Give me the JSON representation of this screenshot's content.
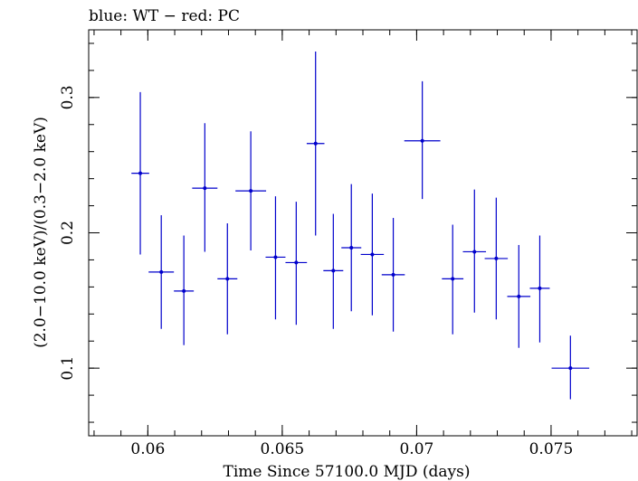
{
  "chart_data": {
    "type": "scatter",
    "title": "blue: WT − red: PC",
    "xlabel": "Time Since 57100.0 MJD (days)",
    "ylabel": "(2.0−10.0 keV)/(0.3−2.0 keV)",
    "xlim": [
      0.0578,
      0.0782
    ],
    "ylim": [
      0.05,
      0.35
    ],
    "x_ticks": [
      {
        "value": 0.06,
        "label": "0.06"
      },
      {
        "value": 0.065,
        "label": "0.065"
      },
      {
        "value": 0.07,
        "label": "0.07"
      },
      {
        "value": 0.075,
        "label": "0.075"
      }
    ],
    "y_ticks": [
      {
        "value": 0.1,
        "label": "0.1"
      },
      {
        "value": 0.2,
        "label": "0.2"
      },
      {
        "value": 0.3,
        "label": "0.3"
      }
    ],
    "x_minor_step": 0.001,
    "y_minor_step": 0.02,
    "grid": false,
    "series": [
      {
        "color": "#0000cc",
        "points": [
          {
            "x": 0.05972,
            "xerr": 0.00033,
            "y": 0.244,
            "ylo": 0.184,
            "yhi": 0.304
          },
          {
            "x": 0.0605,
            "xerr": 0.00047,
            "y": 0.171,
            "ylo": 0.129,
            "yhi": 0.213
          },
          {
            "x": 0.06134,
            "xerr": 0.00037,
            "y": 0.157,
            "ylo": 0.117,
            "yhi": 0.198
          },
          {
            "x": 0.06212,
            "xerr": 0.00047,
            "y": 0.233,
            "ylo": 0.186,
            "yhi": 0.281
          },
          {
            "x": 0.06296,
            "xerr": 0.00037,
            "y": 0.166,
            "ylo": 0.125,
            "yhi": 0.207
          },
          {
            "x": 0.06383,
            "xerr": 0.00057,
            "y": 0.231,
            "ylo": 0.187,
            "yhi": 0.275
          },
          {
            "x": 0.06475,
            "xerr": 0.00037,
            "y": 0.182,
            "ylo": 0.136,
            "yhi": 0.227
          },
          {
            "x": 0.06552,
            "xerr": 0.0004,
            "y": 0.178,
            "ylo": 0.132,
            "yhi": 0.223
          },
          {
            "x": 0.06624,
            "xerr": 0.00033,
            "y": 0.266,
            "ylo": 0.198,
            "yhi": 0.334
          },
          {
            "x": 0.0669,
            "xerr": 0.00037,
            "y": 0.172,
            "ylo": 0.129,
            "yhi": 0.214
          },
          {
            "x": 0.06757,
            "xerr": 0.00037,
            "y": 0.189,
            "ylo": 0.142,
            "yhi": 0.236
          },
          {
            "x": 0.06835,
            "xerr": 0.00043,
            "y": 0.184,
            "ylo": 0.139,
            "yhi": 0.229
          },
          {
            "x": 0.06913,
            "xerr": 0.00043,
            "y": 0.169,
            "ylo": 0.127,
            "yhi": 0.211
          },
          {
            "x": 0.07021,
            "xerr": 0.00067,
            "y": 0.268,
            "ylo": 0.225,
            "yhi": 0.312
          },
          {
            "x": 0.07134,
            "xerr": 0.0004,
            "y": 0.166,
            "ylo": 0.125,
            "yhi": 0.206
          },
          {
            "x": 0.07215,
            "xerr": 0.00043,
            "y": 0.186,
            "ylo": 0.141,
            "yhi": 0.232
          },
          {
            "x": 0.07296,
            "xerr": 0.00043,
            "y": 0.181,
            "ylo": 0.136,
            "yhi": 0.226
          },
          {
            "x": 0.0738,
            "xerr": 0.00043,
            "y": 0.153,
            "ylo": 0.115,
            "yhi": 0.191
          },
          {
            "x": 0.07458,
            "xerr": 0.00037,
            "y": 0.159,
            "ylo": 0.119,
            "yhi": 0.198
          },
          {
            "x": 0.07572,
            "xerr": 0.0007,
            "y": 0.1,
            "ylo": 0.077,
            "yhi": 0.124
          }
        ]
      }
    ]
  }
}
